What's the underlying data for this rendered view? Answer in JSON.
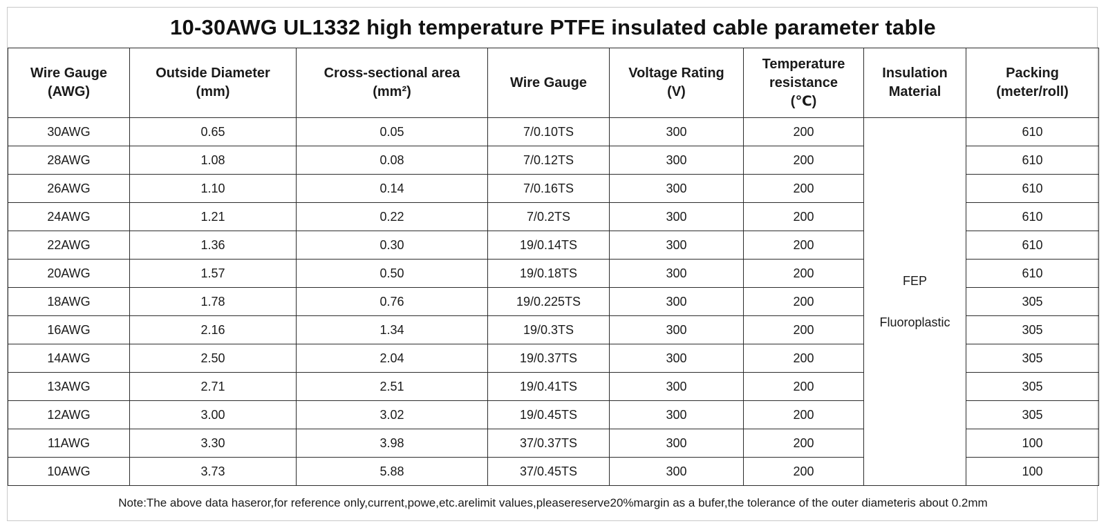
{
  "title": "10-30AWG UL1332 high temperature PTFE insulated cable parameter table",
  "headers": [
    [
      "Wire   Gauge",
      "(AWG)"
    ],
    [
      "Outside Diameter",
      "(mm)"
    ],
    [
      "Cross-sectional area",
      "(mm²)"
    ],
    [
      "Wire   Gauge"
    ],
    [
      "Voltage Rating",
      "(V)"
    ],
    [
      "Temperature",
      "resistance",
      "(℃)"
    ],
    [
      "Insulation",
      "Material"
    ],
    [
      "Packing",
      "(meter/roll)"
    ]
  ],
  "insulation": {
    "line1": "FEP",
    "line2": "Fluoroplastic"
  },
  "rows": [
    {
      "awg": "30AWG",
      "od": "0.65",
      "area": "0.05",
      "strand": "7/0.10TS",
      "voltage": "300",
      "temp": "200",
      "packing": "610"
    },
    {
      "awg": "28AWG",
      "od": "1.08",
      "area": "0.08",
      "strand": "7/0.12TS",
      "voltage": "300",
      "temp": "200",
      "packing": "610"
    },
    {
      "awg": "26AWG",
      "od": "1.10",
      "area": "0.14",
      "strand": "7/0.16TS",
      "voltage": "300",
      "temp": "200",
      "packing": "610"
    },
    {
      "awg": "24AWG",
      "od": "1.21",
      "area": "0.22",
      "strand": "7/0.2TS",
      "voltage": "300",
      "temp": "200",
      "packing": "610"
    },
    {
      "awg": "22AWG",
      "od": "1.36",
      "area": "0.30",
      "strand": "19/0.14TS",
      "voltage": "300",
      "temp": "200",
      "packing": "610"
    },
    {
      "awg": "20AWG",
      "od": "1.57",
      "area": "0.50",
      "strand": "19/0.18TS",
      "voltage": "300",
      "temp": "200",
      "packing": "610"
    },
    {
      "awg": "18AWG",
      "od": "1.78",
      "area": "0.76",
      "strand": "19/0.225TS",
      "voltage": "300",
      "temp": "200",
      "packing": "305"
    },
    {
      "awg": "16AWG",
      "od": "2.16",
      "area": "1.34",
      "strand": "19/0.3TS",
      "voltage": "300",
      "temp": "200",
      "packing": "305"
    },
    {
      "awg": "14AWG",
      "od": "2.50",
      "area": "2.04",
      "strand": "19/0.37TS",
      "voltage": "300",
      "temp": "200",
      "packing": "305"
    },
    {
      "awg": "13AWG",
      "od": "2.71",
      "area": "2.51",
      "strand": "19/0.41TS",
      "voltage": "300",
      "temp": "200",
      "packing": "305"
    },
    {
      "awg": "12AWG",
      "od": "3.00",
      "area": "3.02",
      "strand": "19/0.45TS",
      "voltage": "300",
      "temp": "200",
      "packing": "305"
    },
    {
      "awg": "11AWG",
      "od": "3.30",
      "area": "3.98",
      "strand": "37/0.37TS",
      "voltage": "300",
      "temp": "200",
      "packing": "100"
    },
    {
      "awg": "10AWG",
      "od": "3.73",
      "area": "5.88",
      "strand": "37/0.45TS",
      "voltage": "300",
      "temp": "200",
      "packing": "100"
    }
  ],
  "note": "Note:The above data haseror,for reference only,current,powe,etc.arelimit values,pleasereserve20%margin as a bufer,the tolerance of the outer diameteris about 0.2mm"
}
